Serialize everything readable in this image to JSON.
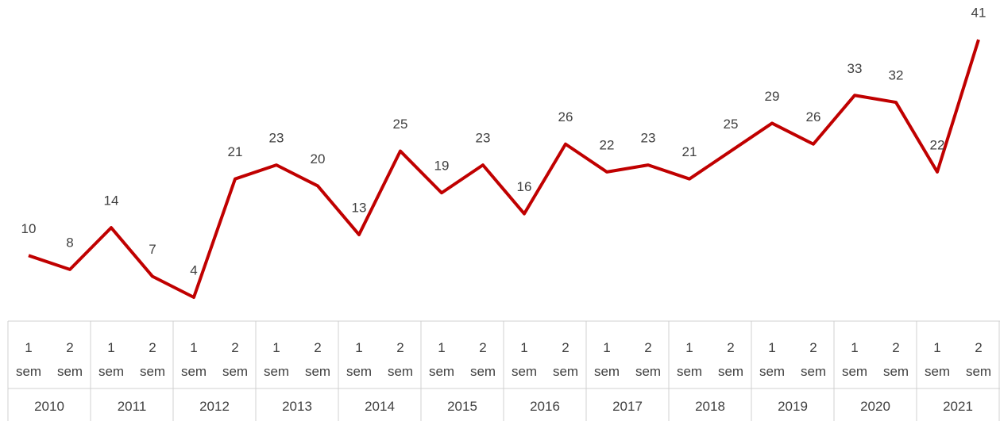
{
  "chart_data": {
    "type": "line",
    "categories": [
      "1 sem",
      "2 sem",
      "1 sem",
      "2 sem",
      "1 sem",
      "2 sem",
      "1 sem",
      "2 sem",
      "1 sem",
      "2 sem",
      "1 sem",
      "2 sem",
      "1 sem",
      "2 sem",
      "1 sem",
      "2 sem",
      "1 sem",
      "2 sem",
      "1 sem",
      "2 sem",
      "1 sem",
      "2 sem",
      "1 sem",
      "2 sem"
    ],
    "category_groups": [
      "2010",
      "2011",
      "2012",
      "2013",
      "2014",
      "2015",
      "2016",
      "2017",
      "2018",
      "2019",
      "2020",
      "2021"
    ],
    "values": [
      10,
      8,
      14,
      7,
      4,
      21,
      23,
      20,
      13,
      25,
      19,
      23,
      16,
      26,
      22,
      23,
      21,
      25,
      29,
      26,
      33,
      32,
      22,
      41
    ],
    "color": "#c00000"
  }
}
